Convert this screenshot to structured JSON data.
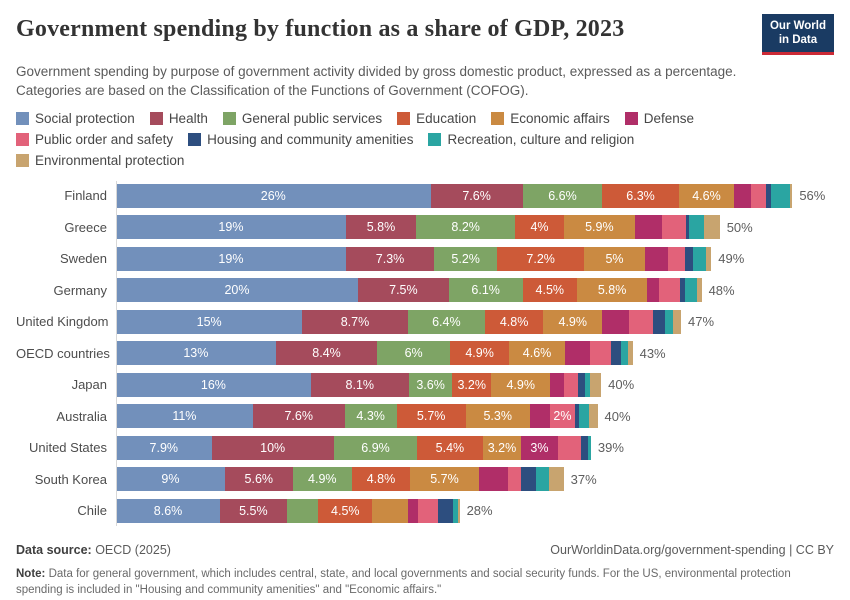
{
  "header": {
    "title": "Government spending by function as a share of GDP, 2023",
    "subtitle": "Government spending by purpose of government activity divided by gross domestic product, expressed as a percentage. Categories are based on the Classification of the Functions of Government (COFOG)."
  },
  "logo": {
    "line1": "Our World",
    "line2": "in Data",
    "background_color": "#1a3b63",
    "stripe_color": "#cc2a36"
  },
  "legend": {
    "items": [
      {
        "label": "Social protection",
        "color": "#7290bb"
      },
      {
        "label": "Health",
        "color": "#a54b5c"
      },
      {
        "label": "General public services",
        "color": "#7ea465"
      },
      {
        "label": "Education",
        "color": "#cd5a38"
      },
      {
        "label": "Economic affairs",
        "color": "#ca8a42"
      },
      {
        "label": "Defense",
        "color": "#b02e68"
      },
      {
        "label": "Public order and safety",
        "color": "#e2627a"
      },
      {
        "label": "Housing and community amenities",
        "color": "#2d4e7f"
      },
      {
        "label": "Recreation, culture and religion",
        "color": "#2aa5a2"
      },
      {
        "label": "Environmental protection",
        "color": "#c8a46f"
      }
    ]
  },
  "chart_data": {
    "type": "bar",
    "variant": "horizontal-stacked",
    "unit": "% of GDP",
    "xlim": [
      0,
      56
    ],
    "grid": false,
    "legend_position": "top",
    "series_names": [
      "Social protection",
      "Health",
      "General public services",
      "Education",
      "Economic affairs",
      "Defense",
      "Public order and safety",
      "Housing and community amenities",
      "Recreation, culture and religion",
      "Environmental protection"
    ],
    "rows": [
      {
        "country": "Finland",
        "total_label": "56%",
        "values": [
          26,
          7.6,
          6.6,
          6.3,
          4.6,
          1.4,
          1.2,
          0.4,
          1.6,
          0.2
        ],
        "labels": [
          "26%",
          "7.6%",
          "6.6%",
          "6.3%",
          "4.6%",
          null,
          null,
          null,
          null,
          null
        ]
      },
      {
        "country": "Greece",
        "total_label": "50%",
        "values": [
          19,
          5.8,
          8.2,
          4,
          5.9,
          2.2,
          2.0,
          0.3,
          1.2,
          1.3
        ],
        "labels": [
          "19%",
          "5.8%",
          "8.2%",
          "4%",
          "5.9%",
          null,
          null,
          null,
          null,
          null
        ]
      },
      {
        "country": "Sweden",
        "total_label": "49%",
        "values": [
          19,
          7.3,
          5.2,
          7.2,
          5,
          1.9,
          1.4,
          0.7,
          1.1,
          0.4
        ],
        "labels": [
          "19%",
          "7.3%",
          "5.2%",
          "7.2%",
          "5%",
          null,
          null,
          null,
          null,
          null
        ]
      },
      {
        "country": "Germany",
        "total_label": "48%",
        "values": [
          20,
          7.5,
          6.1,
          4.5,
          5.8,
          1.0,
          1.7,
          0.4,
          1.0,
          0.4
        ],
        "labels": [
          "20%",
          "7.5%",
          "6.1%",
          "4.5%",
          "5.8%",
          null,
          null,
          null,
          null,
          null
        ]
      },
      {
        "country": "United Kingdom",
        "total_label": "47%",
        "values": [
          15.4,
          8.7,
          6.4,
          4.8,
          4.9,
          2.2,
          2.0,
          1.0,
          0.6,
          0.7
        ],
        "labels": [
          "15%",
          "8.7%",
          "6.4%",
          "4.8%",
          "4.9%",
          null,
          null,
          null,
          null,
          null
        ]
      },
      {
        "country": "OECD countries",
        "total_label": "43%",
        "values": [
          13.2,
          8.4,
          6,
          4.9,
          4.6,
          2.1,
          1.7,
          0.8,
          0.6,
          0.4
        ],
        "labels": [
          "13%",
          "8.4%",
          "6%",
          "4.9%",
          "4.6%",
          null,
          null,
          null,
          null,
          null
        ]
      },
      {
        "country": "Japan",
        "total_label": "40%",
        "values": [
          16.1,
          8.1,
          3.6,
          3.2,
          4.9,
          1.1,
          1.2,
          0.6,
          0.4,
          0.9
        ],
        "labels": [
          "16%",
          "8.1%",
          "3.6%",
          "3.2%",
          "4.9%",
          null,
          null,
          null,
          null,
          null
        ]
      },
      {
        "country": "Australia",
        "total_label": "40%",
        "values": [
          11.3,
          7.6,
          4.3,
          5.7,
          5.3,
          1.7,
          2.0,
          0.4,
          0.8,
          0.7
        ],
        "labels": [
          "11%",
          "7.6%",
          "4.3%",
          "5.7%",
          "5.3%",
          null,
          "2%",
          null,
          null,
          null
        ]
      },
      {
        "country": "United States",
        "total_label": "39%",
        "values": [
          7.9,
          10.1,
          6.9,
          5.4,
          3.2,
          3.0,
          1.9,
          0.6,
          0.25,
          0
        ],
        "labels": [
          "7.9%",
          "10%",
          "6.9%",
          "5.4%",
          "3.2%",
          "3%",
          null,
          null,
          null,
          null
        ]
      },
      {
        "country": "South Korea",
        "total_label": "37%",
        "values": [
          9,
          5.6,
          4.9,
          4.8,
          5.7,
          2.4,
          1.1,
          1.2,
          1.1,
          1.2
        ],
        "labels": [
          "9%",
          "5.6%",
          "4.9%",
          "4.8%",
          "5.7%",
          null,
          null,
          null,
          null,
          null
        ]
      },
      {
        "country": "Chile",
        "total_label": "28%",
        "values": [
          8.6,
          5.5,
          2.6,
          4.5,
          2.9,
          0.85,
          1.7,
          1.2,
          0.45,
          0.1
        ],
        "labels": [
          "8.6%",
          "5.5%",
          null,
          "4.5%",
          null,
          null,
          null,
          null,
          null,
          null
        ]
      }
    ]
  },
  "footer": {
    "source_label": "Data source:",
    "source_value": " OECD (2025)",
    "attribution_link": "OurWorldinData.org/government-spending",
    "attribution_license": " | CC BY",
    "note_label": "Note:",
    "note_text": " Data for general government, which includes central, state, and local governments and social security funds. For the US, environmental protection spending is included in \"Housing and community amenities\" and \"Economic affairs.\""
  }
}
